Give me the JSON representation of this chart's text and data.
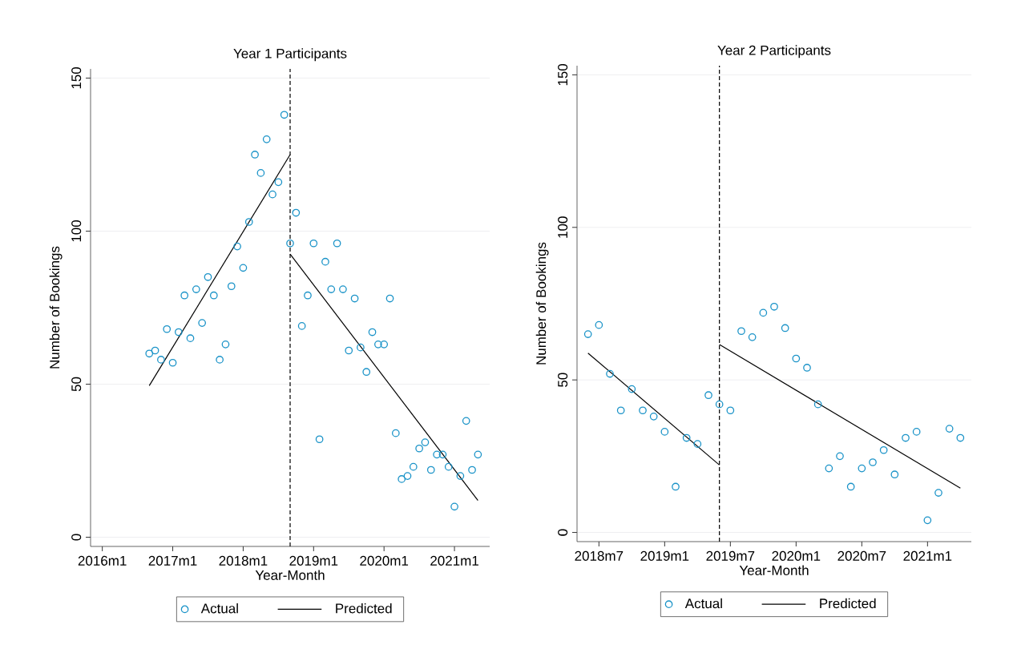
{
  "chart_data": [
    {
      "type": "scatter",
      "title": "Year 1 Participants",
      "xlabel": "Year-Month",
      "ylabel": "Number of Bookings",
      "xlim": [
        "2015-11",
        "2021-07"
      ],
      "ylim": [
        -3,
        153
      ],
      "xticks": [
        {
          "value": "2016-01",
          "label": "2016m1"
        },
        {
          "value": "2017-01",
          "label": "2017m1"
        },
        {
          "value": "2018-01",
          "label": "2018m1"
        },
        {
          "value": "2019-01",
          "label": "2019m1"
        },
        {
          "value": "2020-01",
          "label": "2020m1"
        },
        {
          "value": "2021-01",
          "label": "2021m1"
        }
      ],
      "yticks": [
        0,
        50,
        100,
        150
      ],
      "grid": "y",
      "legend": "bottom",
      "ref_lines": [
        {
          "axis": "x",
          "value": "2018-09",
          "color": "#000000",
          "line_style": "dashed"
        }
      ],
      "series": [
        {
          "name": "Actual",
          "color": "#1a93c8",
          "marker": "circle",
          "x": [
            "2016-09",
            "2016-10",
            "2016-11",
            "2016-12",
            "2017-01",
            "2017-02",
            "2017-03",
            "2017-04",
            "2017-05",
            "2017-06",
            "2017-07",
            "2017-08",
            "2017-09",
            "2017-10",
            "2017-11",
            "2017-12",
            "2018-01",
            "2018-02",
            "2018-03",
            "2018-04",
            "2018-05",
            "2018-06",
            "2018-07",
            "2018-08",
            "2018-09",
            "2018-10",
            "2018-11",
            "2018-12",
            "2019-01",
            "2019-02",
            "2019-03",
            "2019-04",
            "2019-05",
            "2019-06",
            "2019-07",
            "2019-08",
            "2019-09",
            "2019-10",
            "2019-11",
            "2019-12",
            "2020-01",
            "2020-02",
            "2020-03",
            "2020-04",
            "2020-05",
            "2020-06",
            "2020-07",
            "2020-08",
            "2020-09",
            "2020-10",
            "2020-11",
            "2020-12",
            "2021-01",
            "2021-02",
            "2021-03",
            "2021-04",
            "2021-05"
          ],
          "values": [
            60,
            61,
            58,
            68,
            57,
            67,
            79,
            65,
            81,
            70,
            85,
            79,
            58,
            63,
            82,
            95,
            88,
            103,
            125,
            119,
            130,
            112,
            116,
            138,
            96,
            106,
            69,
            79,
            96,
            32,
            90,
            81,
            96,
            81,
            61,
            78,
            62,
            54,
            67,
            63,
            63,
            78,
            34,
            19,
            20,
            23,
            29,
            31,
            22,
            27,
            27,
            23,
            10,
            20,
            38,
            22,
            27
          ]
        },
        {
          "name": "Predicted",
          "type": "line",
          "color": "#000000",
          "marker": "none",
          "line_style": "solid",
          "x": [
            "2016-09",
            "2018-09"
          ],
          "values": [
            49.5,
            125
          ]
        },
        {
          "type": "line",
          "color": "#000000",
          "marker": "none",
          "line_style": "solid",
          "x": [
            "2018-09",
            "2021-05"
          ],
          "values": [
            92.5,
            12
          ]
        }
      ]
    },
    {
      "type": "scatter",
      "title": "Year 2 Participants",
      "xlabel": "Year-Month",
      "ylabel": "Number of Bookings",
      "xlim": [
        "2018-05",
        "2021-05"
      ],
      "ylim": [
        -3,
        153
      ],
      "xticks": [
        {
          "value": "2018-07",
          "label": "2018m7"
        },
        {
          "value": "2019-01",
          "label": "2019m1"
        },
        {
          "value": "2019-07",
          "label": "2019m7"
        },
        {
          "value": "2020-01",
          "label": "2020m1"
        },
        {
          "value": "2020-07",
          "label": "2020m7"
        },
        {
          "value": "2021-01",
          "label": "2021m1"
        }
      ],
      "yticks": [
        0,
        50,
        100,
        150
      ],
      "grid": "y",
      "legend": "bottom",
      "ref_lines": [
        {
          "axis": "x",
          "value": "2019-06",
          "color": "#000000",
          "line_style": "dashed"
        }
      ],
      "series": [
        {
          "name": "Actual",
          "color": "#1a93c8",
          "marker": "circle",
          "x": [
            "2018-06",
            "2018-07",
            "2018-08",
            "2018-09",
            "2018-10",
            "2018-11",
            "2018-12",
            "2019-01",
            "2019-02",
            "2019-03",
            "2019-04",
            "2019-05",
            "2019-06",
            "2019-07",
            "2019-08",
            "2019-09",
            "2019-10",
            "2019-11",
            "2019-12",
            "2020-01",
            "2020-02",
            "2020-03",
            "2020-04",
            "2020-05",
            "2020-06",
            "2020-07",
            "2020-08",
            "2020-09",
            "2020-10",
            "2020-11",
            "2020-12",
            "2021-01",
            "2021-02",
            "2021-03",
            "2021-04"
          ],
          "values": [
            65,
            68,
            52,
            40,
            47,
            40,
            38,
            33,
            15,
            31,
            29,
            45,
            42,
            40,
            66,
            64,
            72,
            74,
            67,
            57,
            54,
            42,
            21,
            25,
            15,
            21,
            23,
            27,
            19,
            31,
            33,
            4,
            13,
            34,
            31
          ]
        },
        {
          "name": "Predicted",
          "type": "line",
          "color": "#000000",
          "marker": "none",
          "line_style": "solid",
          "x": [
            "2018-06",
            "2019-06"
          ],
          "values": [
            58.8,
            22.1
          ]
        },
        {
          "type": "line",
          "color": "#000000",
          "marker": "none",
          "line_style": "solid",
          "x": [
            "2019-06",
            "2021-04"
          ],
          "values": [
            61.6,
            14.5
          ]
        }
      ]
    }
  ]
}
